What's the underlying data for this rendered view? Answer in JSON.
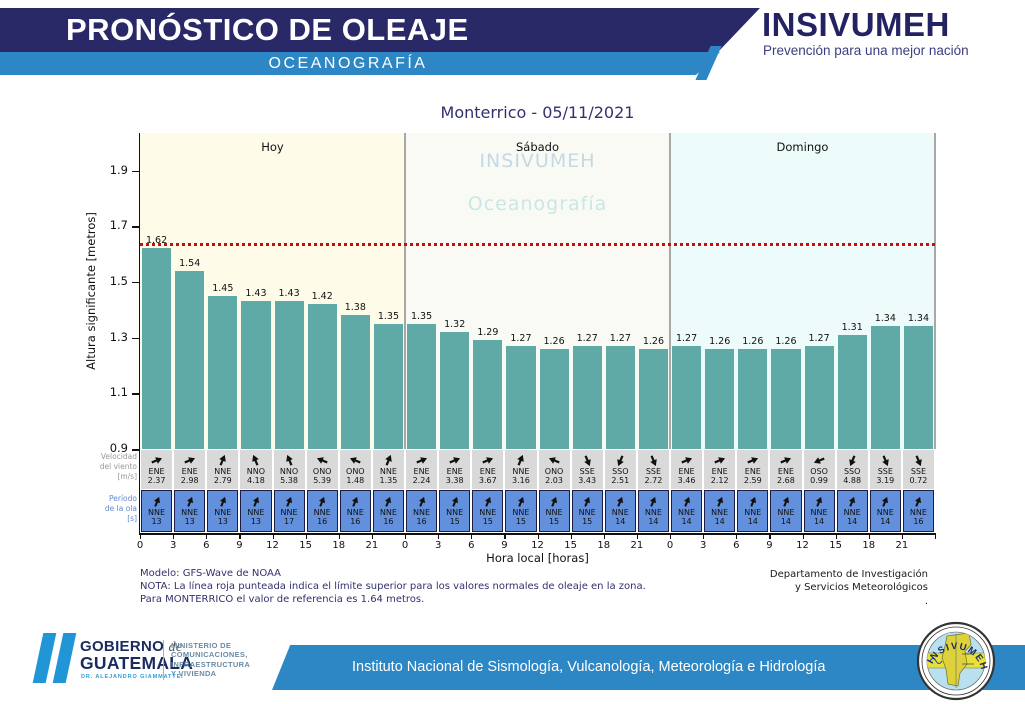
{
  "header": {
    "title": "PRONÓSTICO DE OLEAJE",
    "subtitle": "OCEANOGRAFÍA",
    "brand": "INSIVUMEH",
    "brand_tagline": "Prevención para una mejor nación",
    "colors": {
      "navy": "#2a2968",
      "blue": "#2d87c5"
    }
  },
  "chart_data": {
    "type": "bar",
    "title": "Monterrico  -  05/11/2021",
    "ylabel": "Altura significante [metros]",
    "xlabel": "Hora local [horas]",
    "ylim": [
      0.9,
      2.04
    ],
    "yticks": [
      1.9,
      1.7,
      1.5,
      1.3,
      1.1,
      0.9
    ],
    "reference_line": 1.64,
    "bar_color": "#5fa9a7",
    "grid": false,
    "day_sections": [
      {
        "label": "Hoy",
        "bg": "#fffbe9"
      },
      {
        "label": "Sábado",
        "bg": "#fafaf5"
      },
      {
        "label": "Domingo",
        "bg": "#eefbfb"
      }
    ],
    "watermark": [
      "INSIVUMEH",
      "Oceanografía"
    ],
    "hours": [
      0,
      3,
      6,
      9,
      12,
      15,
      18,
      21,
      0,
      3,
      6,
      9,
      12,
      15,
      18,
      21,
      0,
      3,
      6,
      9,
      12,
      15,
      18,
      21
    ],
    "values": [
      1.62,
      1.54,
      1.45,
      1.43,
      1.43,
      1.42,
      1.38,
      1.35,
      1.35,
      1.32,
      1.29,
      1.27,
      1.26,
      1.27,
      1.27,
      1.26,
      1.27,
      1.26,
      1.26,
      1.26,
      1.27,
      1.31,
      1.34,
      1.34
    ],
    "wind": {
      "label_lines": [
        "Velocidad",
        "del viento",
        "[m/s]"
      ],
      "band_color": "#d9d9d9",
      "dirs": [
        "ENE",
        "ENE",
        "NNE",
        "NNO",
        "NNO",
        "ONO",
        "ONO",
        "NNE",
        "ENE",
        "ENE",
        "ENE",
        "NNE",
        "ONO",
        "SSE",
        "SSO",
        "SSE",
        "ENE",
        "ENE",
        "ENE",
        "ENE",
        "OSO",
        "SSO",
        "SSE",
        "SSE"
      ],
      "speeds": [
        2.37,
        2.98,
        2.79,
        4.18,
        5.38,
        5.39,
        1.48,
        1.35,
        2.24,
        3.38,
        3.67,
        3.16,
        2.03,
        3.43,
        2.51,
        2.72,
        3.46,
        2.12,
        2.59,
        2.68,
        0.99,
        4.88,
        3.19,
        0.72
      ]
    },
    "period": {
      "label_lines": [
        "Período",
        "de la ola",
        "[s]"
      ],
      "band_color": "#6290dc",
      "dirs": [
        "NNE",
        "NNE",
        "NNE",
        "NNE",
        "NNE",
        "NNE",
        "NNE",
        "NNE",
        "NNE",
        "NNE",
        "NNE",
        "NNE",
        "NNE",
        "NNE",
        "NNE",
        "NNE",
        "NNE",
        "NNE",
        "NNE",
        "NNE",
        "NNE",
        "NNE",
        "NNE",
        "NNE"
      ],
      "values": [
        13,
        13,
        13,
        13,
        17,
        16,
        16,
        16,
        16,
        15,
        15,
        15,
        15,
        15,
        14,
        14,
        14,
        14,
        14,
        14,
        14,
        14,
        14,
        16
      ]
    }
  },
  "notes": {
    "model": "Modelo: GFS-Wave de NOAA",
    "nota": "NOTA: La línea roja punteada indica el límite superior para los valores normales de oleaje en la zona.",
    "referencia": "Para MONTERRICO el valor de referencia es 1.64 metros.",
    "department_line1": "Departamento de Investigación",
    "department_line2": "y Servicios Meteorológicos",
    "department_dot": "."
  },
  "footer": {
    "gobierno_line1": "GOBIERNO",
    "gobierno_de": "de",
    "gobierno_line2": "GUATEMALA",
    "gobierno_sub": "DR. ALEJANDRO GIAMMATTEI",
    "ministerio_lines": [
      "MINISTERIO DE",
      "COMUNICACIONES,",
      "INFRAESTRUCTURA",
      "Y VIVIENDA"
    ],
    "institute": "Instituto Nacional de Sismología, Vulcanología, Meteorología e Hidrología",
    "seal_text": "INSIVUMEH"
  }
}
